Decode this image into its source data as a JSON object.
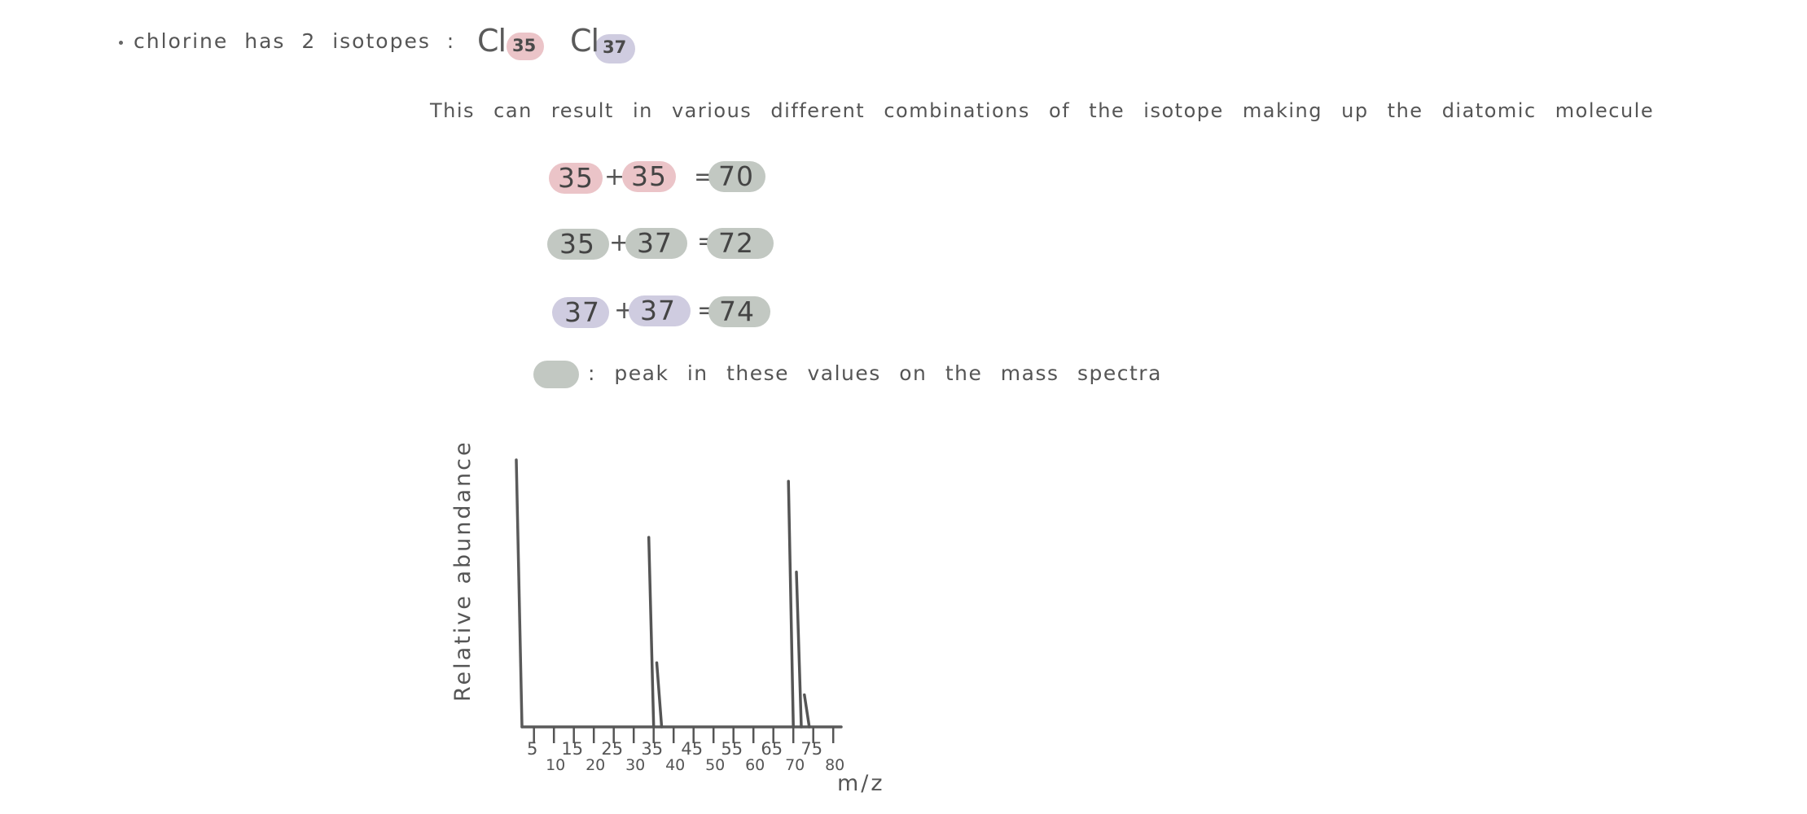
{
  "intro": {
    "text": "chlorine has 2 isotopes :",
    "isotopes": [
      {
        "symbol": "Cl",
        "mass": "35",
        "color": "#ebc4c8"
      },
      {
        "symbol": "Cl",
        "mass": "37",
        "color": "#cfcce0"
      }
    ]
  },
  "description": "This can result in various different combinations of the isotope making up the diatomic molecule",
  "combinations": [
    {
      "a": "35",
      "b": "35",
      "sum": "70"
    },
    {
      "a": "35",
      "b": "37",
      "sum": "72"
    },
    {
      "a": "37",
      "b": "37",
      "sum": "74"
    }
  ],
  "symbols": {
    "plus": "+",
    "equals": "="
  },
  "legend": {
    "text": ": peak in these values on the mass spectra",
    "color": "#c2c8c2"
  },
  "colors": {
    "cl35": "#ebc4c8",
    "cl37": "#cfcce0",
    "peak": "#c2c8c2",
    "ink": "#555555"
  },
  "chart_data": {
    "type": "bar",
    "title": "",
    "xlabel": "m/z",
    "ylabel": "Relative abundance",
    "x_ticks_upper": [
      "5",
      "15",
      "25",
      "35",
      "45",
      "55",
      "65",
      "75"
    ],
    "x_ticks_lower": [
      "10",
      "20",
      "30",
      "40",
      "50",
      "60",
      "70",
      "80"
    ],
    "xlim": [
      2,
      82
    ],
    "ylim": [
      0,
      100
    ],
    "grid": false,
    "peaks": [
      {
        "x": 35,
        "y": 71
      },
      {
        "x": 37,
        "y": 24
      },
      {
        "x": 70,
        "y": 92
      },
      {
        "x": 72,
        "y": 58
      },
      {
        "x": 74,
        "y": 12
      }
    ]
  }
}
